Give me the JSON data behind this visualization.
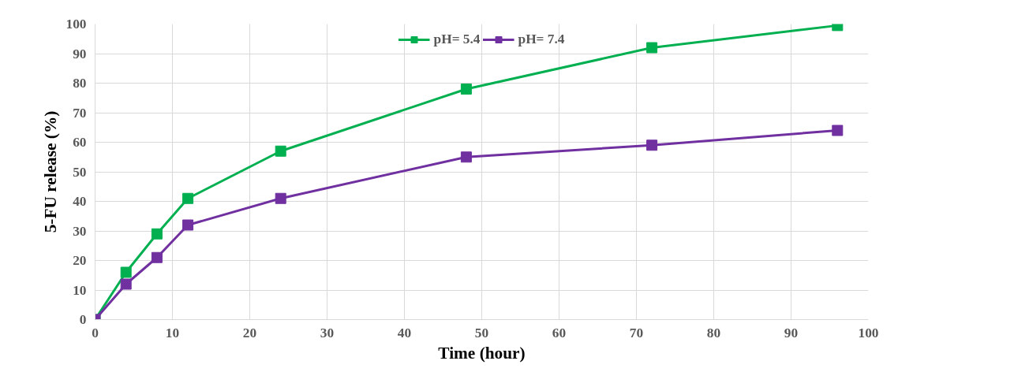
{
  "chart_data": {
    "type": "line",
    "xlabel": "Time (hour)",
    "ylabel": "5-FU release (%)",
    "x": [
      0,
      4,
      8,
      12,
      24,
      48,
      72,
      96
    ],
    "series": [
      {
        "name": "pH= 5.4",
        "color": "#00b050",
        "values": [
          0,
          16,
          29,
          41,
          57,
          78,
          92,
          99.5
        ]
      },
      {
        "name": "pH= 7.4",
        "color": "#7030a0",
        "values": [
          0,
          12,
          21,
          32,
          41,
          55,
          59,
          64
        ]
      }
    ],
    "xlim": [
      0,
      100
    ],
    "ylim": [
      0,
      100
    ],
    "xticks": [
      0,
      10,
      20,
      30,
      40,
      50,
      60,
      70,
      80,
      90,
      100
    ],
    "yticks": [
      0,
      10,
      20,
      30,
      40,
      50,
      60,
      70,
      80,
      90,
      100
    ],
    "grid": true,
    "legend": "top",
    "marker": "square",
    "line_style": "solid"
  }
}
